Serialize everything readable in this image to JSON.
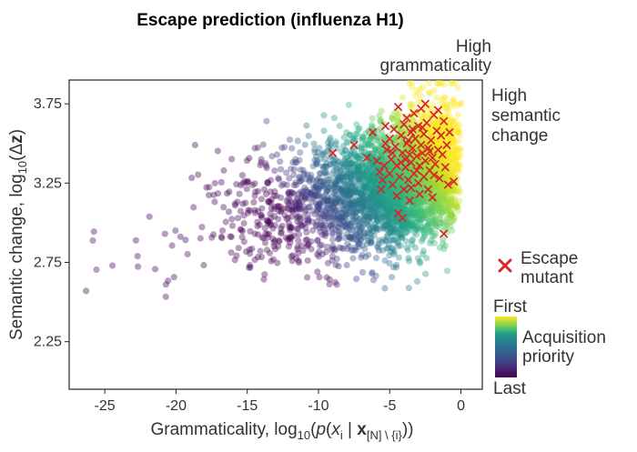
{
  "chart_data": {
    "type": "scatter",
    "title": "Escape prediction (influenza H1)",
    "xlabel": "Grammaticality, log10(p(xi | x[N]\\{i}))",
    "xlabel_parts": {
      "prefix": "Grammaticality, log",
      "sub10": "10",
      "open": "(",
      "p": "p",
      "open2": "(",
      "x": "x",
      "sub_i": "i",
      "bar": " | ",
      "xbold": "x",
      "sub_set": "[N] \\ {i}",
      "close": "))"
    },
    "ylabel": "Semantic change, log10(Δz)",
    "ylabel_parts": {
      "prefix": "Semantic change, log",
      "sub10": "10",
      "open": "(Δ",
      "z": "z",
      "close": ")"
    },
    "xlim": [
      -27.5,
      1.5
    ],
    "ylim": [
      1.95,
      3.9
    ],
    "x_ticks": [
      -25,
      -20,
      -15,
      -10,
      -5,
      0
    ],
    "x_tick_labels": [
      "-25",
      "-20",
      "-15",
      "-10",
      "-5",
      "0"
    ],
    "y_ticks": [
      2.25,
      2.75,
      3.25,
      3.75
    ],
    "y_tick_labels": [
      "2.25",
      "2.75",
      "3.25",
      "3.75"
    ],
    "grid": false,
    "annotations": {
      "top_right_line1": "High",
      "top_right_line2": "grammaticality",
      "right_line1": "High",
      "right_line2": "semantic",
      "right_line3": "change"
    },
    "legend": {
      "marker_label_line1": "Escape",
      "marker_label_line2": "mutant",
      "colorbar_top": "First",
      "colorbar_bottom": "Last",
      "colorbar_label_line1": "Acquisition",
      "colorbar_label_line2": "priority",
      "marker_color": "#d62728"
    },
    "colormap": "viridis",
    "series": [
      {
        "name": "Escape mutant",
        "marker": "x",
        "color": "#d62728",
        "points": [
          [
            -9.0,
            3.44
          ],
          [
            -7.5,
            3.49
          ],
          [
            -6.6,
            3.41
          ],
          [
            -6.2,
            3.57
          ],
          [
            -5.9,
            3.39
          ],
          [
            -5.7,
            3.32
          ],
          [
            -5.5,
            3.27
          ],
          [
            -5.6,
            3.21
          ],
          [
            -5.4,
            3.36
          ],
          [
            -5.3,
            3.5
          ],
          [
            -5.2,
            3.46
          ],
          [
            -5.0,
            3.53
          ],
          [
            -5.0,
            3.31
          ],
          [
            -4.9,
            3.4
          ],
          [
            -4.8,
            3.24
          ],
          [
            -4.7,
            3.59
          ],
          [
            -4.6,
            3.48
          ],
          [
            -4.5,
            3.36
          ],
          [
            -4.5,
            3.17
          ],
          [
            -4.4,
            3.73
          ],
          [
            -4.3,
            3.29
          ],
          [
            -4.2,
            3.55
          ],
          [
            -4.1,
            3.44
          ],
          [
            -4.0,
            3.62
          ],
          [
            -4.0,
            3.21
          ],
          [
            -3.9,
            3.35
          ],
          [
            -3.8,
            3.5
          ],
          [
            -3.8,
            3.66
          ],
          [
            -3.7,
            3.27
          ],
          [
            -3.6,
            3.43
          ],
          [
            -3.6,
            3.14
          ],
          [
            -3.5,
            3.57
          ],
          [
            -3.5,
            3.38
          ],
          [
            -3.4,
            3.47
          ],
          [
            -3.3,
            3.69
          ],
          [
            -3.3,
            3.31
          ],
          [
            -3.2,
            3.53
          ],
          [
            -3.1,
            3.42
          ],
          [
            -3.0,
            3.25
          ],
          [
            -3.0,
            3.61
          ],
          [
            -2.9,
            3.36
          ],
          [
            -2.8,
            3.49
          ],
          [
            -2.8,
            3.72
          ],
          [
            -2.7,
            3.44
          ],
          [
            -2.6,
            3.29
          ],
          [
            -2.6,
            3.56
          ],
          [
            -2.5,
            3.39
          ],
          [
            -2.4,
            3.63
          ],
          [
            -2.3,
            3.47
          ],
          [
            -2.3,
            3.21
          ],
          [
            -2.2,
            3.33
          ],
          [
            -2.1,
            3.52
          ],
          [
            -2.0,
            3.41
          ],
          [
            -1.9,
            3.68
          ],
          [
            -1.8,
            3.37
          ],
          [
            -1.7,
            3.58
          ],
          [
            -1.6,
            3.46
          ],
          [
            -1.5,
            3.28
          ],
          [
            -1.4,
            3.55
          ],
          [
            -1.3,
            3.43
          ],
          [
            -1.2,
            3.64
          ],
          [
            -1.1,
            3.35
          ],
          [
            -1.0,
            3.49
          ],
          [
            -0.9,
            3.24
          ],
          [
            -0.8,
            3.57
          ],
          [
            -0.5,
            3.26
          ],
          [
            -4.4,
            3.06
          ],
          [
            -4.1,
            3.03
          ],
          [
            -3.9,
            3.4
          ],
          [
            -3.4,
            3.59
          ],
          [
            -2.9,
            3.18
          ],
          [
            -2.5,
            3.75
          ],
          [
            -2.0,
            3.16
          ],
          [
            -1.6,
            3.71
          ],
          [
            -3.7,
            3.52
          ],
          [
            -4.8,
            3.44
          ],
          [
            -5.3,
            3.61
          ],
          [
            -3.1,
            3.33
          ],
          [
            -2.7,
            3.6
          ],
          [
            -2.2,
            3.45
          ],
          [
            -4.2,
            3.38
          ],
          [
            -3.5,
            3.22
          ],
          [
            -1.9,
            3.3
          ],
          [
            -1.2,
            2.93
          ]
        ]
      }
    ],
    "cloud_description_params": {
      "seed": 7,
      "n_points": 3600
    }
  }
}
